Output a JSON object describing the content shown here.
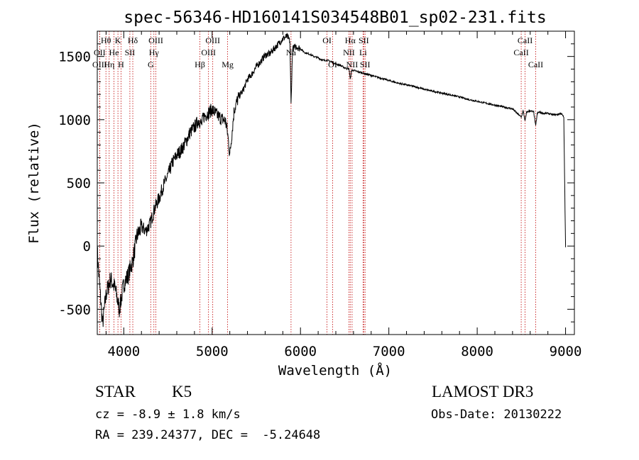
{
  "chart_data": {
    "type": "line",
    "title": "spec-56346-HD160141S034548B01_sp02-231.fits",
    "xlabel": "Wavelength (Å)",
    "ylabel": "Flux (relative)",
    "xlim": [
      3700,
      9100
    ],
    "ylim": [
      -700,
      1700
    ],
    "xticks": [
      4000,
      5000,
      6000,
      7000,
      8000,
      9000
    ],
    "yticks": [
      -500,
      0,
      500,
      1000,
      1500
    ],
    "grid": false,
    "series": [
      {
        "name": "flux",
        "x": [
          3700,
          3720,
          3760,
          3800,
          3850,
          3900,
          3950,
          4000,
          4050,
          4100,
          4150,
          4200,
          4250,
          4300,
          4350,
          4400,
          4450,
          4500,
          4550,
          4600,
          4650,
          4700,
          4750,
          4800,
          4850,
          4880,
          4900,
          4950,
          5000,
          5050,
          5100,
          5150,
          5170,
          5180,
          5200,
          5250,
          5300,
          5350,
          5400,
          5450,
          5500,
          5550,
          5600,
          5650,
          5700,
          5750,
          5800,
          5850,
          5880,
          5893,
          5910,
          5950,
          6000,
          6050,
          6100,
          6150,
          6200,
          6250,
          6300,
          6350,
          6400,
          6450,
          6500,
          6550,
          6563,
          6580,
          6600,
          6650,
          6700,
          6750,
          6800,
          6900,
          7000,
          7100,
          7200,
          7300,
          7400,
          7500,
          7600,
          7700,
          7800,
          7900,
          8000,
          8100,
          8200,
          8300,
          8400,
          8498,
          8520,
          8542,
          8560,
          8600,
          8640,
          8662,
          8680,
          8700,
          8750,
          8800,
          8850,
          8900,
          8950,
          8980,
          9000
        ],
        "values": [
          -40,
          -250,
          -620,
          -380,
          -260,
          -330,
          -500,
          -300,
          -230,
          -120,
          80,
          150,
          120,
          180,
          300,
          380,
          480,
          560,
          660,
          720,
          760,
          820,
          900,
          940,
          1000,
          960,
          1020,
          1050,
          1080,
          1040,
          1010,
          990,
          920,
          860,
          720,
          1080,
          1180,
          1230,
          1320,
          1360,
          1420,
          1460,
          1510,
          1520,
          1560,
          1600,
          1640,
          1660,
          1620,
          1120,
          1560,
          1580,
          1560,
          1530,
          1520,
          1500,
          1490,
          1470,
          1470,
          1460,
          1440,
          1430,
          1410,
          1400,
          1320,
          1390,
          1390,
          1380,
          1370,
          1360,
          1350,
          1330,
          1310,
          1290,
          1275,
          1260,
          1240,
          1225,
          1210,
          1195,
          1180,
          1160,
          1145,
          1130,
          1115,
          1100,
          1085,
          1020,
          1070,
          990,
          1060,
          1070,
          1060,
          950,
          1050,
          1060,
          1050,
          1050,
          1040,
          1040,
          1050,
          1020,
          -10
        ]
      }
    ],
    "line_markers": [
      {
        "label": "Hθ",
        "x": 3798,
        "row": 0
      },
      {
        "label": "OII",
        "x": 3727,
        "row": 1
      },
      {
        "label": "OIII",
        "x": 3727,
        "row": 2
      },
      {
        "label": "He",
        "x": 3889,
        "row": 1
      },
      {
        "label": "Hη",
        "x": 3835,
        "row": 2
      },
      {
        "label": "K",
        "x": 3934,
        "row": 0
      },
      {
        "label": "H",
        "x": 3969,
        "row": 2
      },
      {
        "label": "SII",
        "x": 4069,
        "row": 1
      },
      {
        "label": "Hδ",
        "x": 4102,
        "row": 0
      },
      {
        "label": "OIII",
        "x": 4363,
        "row": 0
      },
      {
        "label": "Hγ",
        "x": 4341,
        "row": 1
      },
      {
        "label": "G",
        "x": 4305,
        "row": 2
      },
      {
        "label": "Hβ",
        "x": 4861,
        "row": 2
      },
      {
        "label": "OIII",
        "x": 5007,
        "row": 0
      },
      {
        "label": "OIII",
        "x": 4959,
        "row": 1
      },
      {
        "label": "Mg",
        "x": 5175,
        "row": 2
      },
      {
        "label": "Na",
        "x": 5893,
        "row": 1
      },
      {
        "label": "OI",
        "x": 6300,
        "row": 0
      },
      {
        "label": "OI",
        "x": 6364,
        "row": 2
      },
      {
        "label": "Hα",
        "x": 6563,
        "row": 0
      },
      {
        "label": "NII",
        "x": 6548,
        "row": 1
      },
      {
        "label": "NII",
        "x": 6584,
        "row": 2
      },
      {
        "label": "SII",
        "x": 6716,
        "row": 0
      },
      {
        "label": "Li",
        "x": 6708,
        "row": 1
      },
      {
        "label": "SII",
        "x": 6731,
        "row": 2
      },
      {
        "label": "CaII",
        "x": 8542,
        "row": 0
      },
      {
        "label": "CaII",
        "x": 8498,
        "row": 1
      },
      {
        "label": "CaII",
        "x": 8662,
        "row": 2
      }
    ]
  },
  "info": {
    "object_type": "STAR",
    "subclass": "K5",
    "survey": "LAMOST DR3",
    "cz": "cz = -8.9 ± 1.8 km/s",
    "obs_date": "Obs-Date: 20130222",
    "coords": "RA = 239.24377, DEC =  -5.24648"
  },
  "colors": {
    "axes": "#000000",
    "spectrum": "#000000",
    "markers": "#c00000"
  }
}
